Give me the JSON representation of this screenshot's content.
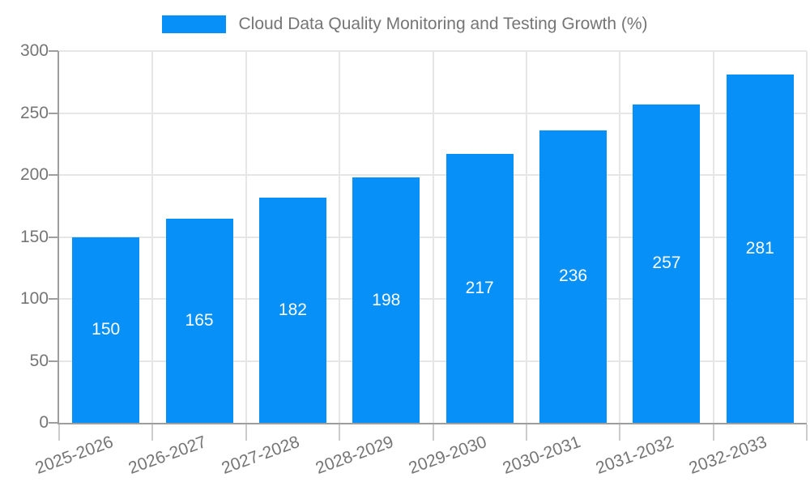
{
  "chart_data": {
    "type": "bar",
    "title": "Cloud Data Quality Monitoring and Testing Growth (%)",
    "categories": [
      "2025-2026",
      "2026-2027",
      "2027-2028",
      "2028-2029",
      "2029-2030",
      "2030-2031",
      "2031-2032",
      "2032-2033"
    ],
    "values": [
      150,
      165,
      182,
      198,
      217,
      236,
      257,
      281
    ],
    "xlabel": "",
    "ylabel": "",
    "ylim": [
      0,
      300
    ],
    "yticks": [
      0,
      50,
      100,
      150,
      200,
      250,
      300
    ],
    "grid": "horizontal and vertical gridlines on",
    "legend_position": "top-center",
    "value_labels": "white, centered inside bars",
    "colors": {
      "bar": "#0790f8",
      "axis_text": "#757575",
      "grid_line": "#e6e6e6",
      "axis_line": "#9e9e9e",
      "x_tick_mark": "#cccccc",
      "value_label": "#ffffff",
      "background": "#ffffff"
    }
  }
}
